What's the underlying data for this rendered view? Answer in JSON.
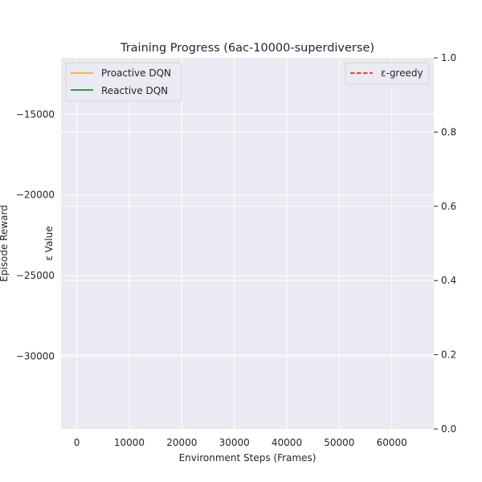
{
  "chart_data": {
    "type": "line",
    "title": "Training Progress (6ac-10000-superdiverse)",
    "xlabel": "Environment Steps (Frames)",
    "ylabel": "Episode Reward",
    "y2label": "ε Value",
    "xlim": [
      -3000,
      68000
    ],
    "ylim": [
      -34500,
      -11500
    ],
    "y2lim": [
      0.0,
      1.0
    ],
    "x_ticks": [
      0,
      10000,
      20000,
      30000,
      40000,
      50000,
      60000
    ],
    "x_tick_labels": [
      "0",
      "10000",
      "20000",
      "30000",
      "40000",
      "50000",
      "60000"
    ],
    "y_ticks": [
      -15000,
      -20000,
      -25000,
      -30000
    ],
    "y_tick_labels": [
      "−15000",
      "−20000",
      "−25000",
      "−30000"
    ],
    "y2_ticks": [
      1.0,
      0.8,
      0.6,
      0.4,
      0.2,
      0.0
    ],
    "y2_tick_labels": [
      "1.0",
      "0.8",
      "0.6",
      "0.4",
      "0.2",
      "0.0"
    ],
    "grid": true,
    "series": [
      {
        "name": "Proactive DQN",
        "axis": "left",
        "color": "#ffa500",
        "style": "solid",
        "x": [],
        "y": []
      },
      {
        "name": "Reactive DQN",
        "axis": "left",
        "color": "#008000",
        "style": "solid",
        "x": [],
        "y": []
      },
      {
        "name": "ε-greedy",
        "axis": "right",
        "color": "#ff0000",
        "style": "dashed",
        "x": [],
        "y": []
      }
    ],
    "legend_left_placement": "top-left",
    "legend_right_placement": "top-right"
  }
}
